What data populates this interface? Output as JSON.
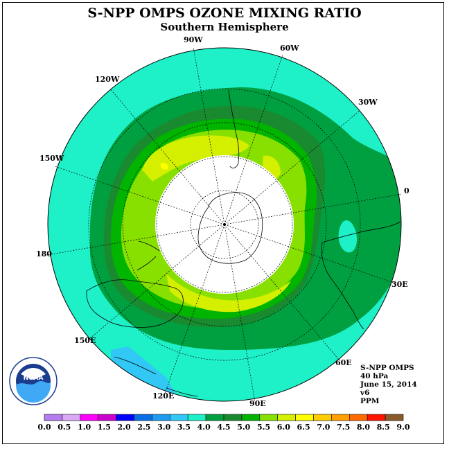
{
  "title": "S-NPP OMPS OZONE MIXING RATIO",
  "subtitle": "Southern Hemisphere",
  "longitude_labels": [
    "90W",
    "60W",
    "30W",
    "0",
    "30E",
    "60E",
    "90E",
    "120E",
    "150E",
    "180",
    "150W",
    "120W"
  ],
  "info": {
    "instrument": "S-NPP OMPS",
    "level": "40 hPa",
    "date": "June 15, 2014",
    "version": "v6",
    "units": "PPM"
  },
  "logo": {
    "text": "NOAA"
  },
  "colorbar": {
    "colors": [
      "#b57cf0",
      "#dba8f5",
      "#ff00ff",
      "#cc00cc",
      "#0000ff",
      "#0a6ee6",
      "#1e9bf0",
      "#32c8f5",
      "#1ef0c8",
      "#00a040",
      "#1a8a30",
      "#00b400",
      "#88e000",
      "#d4f000",
      "#ffff00",
      "#ffcc00",
      "#ffa000",
      "#ff6a00",
      "#ff1400",
      "#8b5a2b"
    ],
    "labels": [
      "0.0",
      "0.5",
      "1.0",
      "1.5",
      "2.0",
      "2.5",
      "3.0",
      "3.5",
      "4.0",
      "4.5",
      "5.0",
      "5.5",
      "6.0",
      "6.5",
      "7.0",
      "7.5",
      "8.0",
      "8.5",
      "9.0"
    ]
  }
}
